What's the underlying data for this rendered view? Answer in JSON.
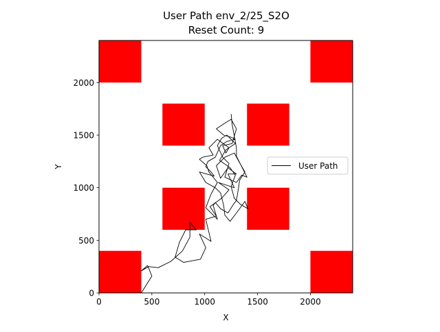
{
  "chart_data": {
    "type": "line",
    "title": "User Path env_2/25_S2O",
    "subtitle": "Reset Count: 9",
    "xlabel": "X",
    "ylabel": "Y",
    "xlim": [
      0,
      2400
    ],
    "ylim": [
      0,
      2400
    ],
    "x_ticks": [
      0,
      500,
      1000,
      1500,
      2000
    ],
    "y_ticks": [
      0,
      500,
      1000,
      1500,
      2000
    ],
    "grid": false,
    "legend_position": "right",
    "obstacle_color": "#ff0000",
    "line_color": "#000000",
    "obstacles": [
      {
        "x0": 0,
        "y0": 2000,
        "x1": 400,
        "y1": 2400
      },
      {
        "x0": 2000,
        "y0": 2000,
        "x1": 2400,
        "y1": 2400
      },
      {
        "x0": 600,
        "y0": 1400,
        "x1": 1000,
        "y1": 1800
      },
      {
        "x0": 1400,
        "y0": 1400,
        "x1": 1800,
        "y1": 1800
      },
      {
        "x0": 600,
        "y0": 600,
        "x1": 1000,
        "y1": 1000
      },
      {
        "x0": 1400,
        "y0": 600,
        "x1": 1800,
        "y1": 1000
      },
      {
        "x0": 0,
        "y0": 0,
        "x1": 400,
        "y1": 400
      },
      {
        "x0": 2000,
        "y0": 0,
        "x1": 2400,
        "y1": 400
      }
    ],
    "series": [
      {
        "name": "User Path",
        "points": [
          [
            400,
            0
          ],
          [
            500,
            160
          ],
          [
            460,
            260
          ],
          [
            400,
            210
          ],
          [
            470,
            250
          ],
          [
            560,
            240
          ],
          [
            680,
            300
          ],
          [
            790,
            400
          ],
          [
            860,
            530
          ],
          [
            860,
            670
          ],
          [
            920,
            600
          ],
          [
            820,
            600
          ],
          [
            760,
            480
          ],
          [
            720,
            340
          ],
          [
            800,
            290
          ],
          [
            960,
            320
          ],
          [
            1010,
            430
          ],
          [
            950,
            560
          ],
          [
            1060,
            490
          ],
          [
            1010,
            700
          ],
          [
            1110,
            730
          ],
          [
            1050,
            820
          ],
          [
            1160,
            900
          ],
          [
            1230,
            980
          ],
          [
            1130,
            1050
          ],
          [
            1280,
            1000
          ],
          [
            1220,
            1130
          ],
          [
            1300,
            1130
          ],
          [
            1220,
            1190
          ],
          [
            1150,
            1090
          ],
          [
            1110,
            1210
          ],
          [
            1190,
            1290
          ],
          [
            1280,
            1330
          ],
          [
            1340,
            1220
          ],
          [
            1380,
            1150
          ],
          [
            1330,
            1070
          ],
          [
            1320,
            1000
          ],
          [
            1300,
            880
          ],
          [
            1270,
            840
          ],
          [
            1220,
            760
          ],
          [
            1150,
            800
          ],
          [
            1100,
            860
          ],
          [
            1080,
            830
          ],
          [
            1120,
            700
          ],
          [
            1010,
            810
          ],
          [
            1060,
            940
          ],
          [
            1120,
            1050
          ],
          [
            1040,
            1150
          ],
          [
            1020,
            1210
          ],
          [
            950,
            1270
          ],
          [
            980,
            1290
          ],
          [
            1080,
            1310
          ],
          [
            1040,
            1380
          ],
          [
            1120,
            1460
          ],
          [
            1230,
            1380
          ],
          [
            1200,
            1330
          ],
          [
            1170,
            1400
          ],
          [
            1260,
            1420
          ],
          [
            1300,
            1560
          ],
          [
            1250,
            1650
          ],
          [
            1200,
            1620
          ],
          [
            1110,
            1560
          ],
          [
            1180,
            1500
          ],
          [
            1250,
            1480
          ],
          [
            1290,
            1460
          ],
          [
            1210,
            1440
          ],
          [
            1150,
            1400
          ],
          [
            1100,
            1290
          ],
          [
            1030,
            1250
          ],
          [
            1010,
            1200
          ],
          [
            1060,
            1150
          ],
          [
            1090,
            1110
          ],
          [
            950,
            1150
          ],
          [
            1010,
            1050
          ],
          [
            1100,
            1000
          ],
          [
            1150,
            950
          ],
          [
            1180,
            830
          ],
          [
            1190,
            740
          ],
          [
            1240,
            680
          ],
          [
            1300,
            760
          ],
          [
            1380,
            870
          ],
          [
            1410,
            800
          ],
          [
            1340,
            840
          ],
          [
            1280,
            900
          ],
          [
            1250,
            1010
          ],
          [
            1290,
            1120
          ],
          [
            1240,
            1190
          ],
          [
            1140,
            1260
          ],
          [
            1200,
            1360
          ],
          [
            1290,
            1420
          ],
          [
            1210,
            1500
          ],
          [
            1160,
            1470
          ],
          [
            1120,
            1400
          ],
          [
            1170,
            1290
          ],
          [
            1230,
            1230
          ],
          [
            1190,
            1100
          ],
          [
            1300,
            1050
          ],
          [
            1350,
            1120
          ],
          [
            1400,
            1100
          ],
          [
            1300,
            1300
          ],
          [
            1300,
            1380
          ],
          [
            1260,
            1600
          ],
          [
            1250,
            1700
          ]
        ]
      }
    ]
  }
}
